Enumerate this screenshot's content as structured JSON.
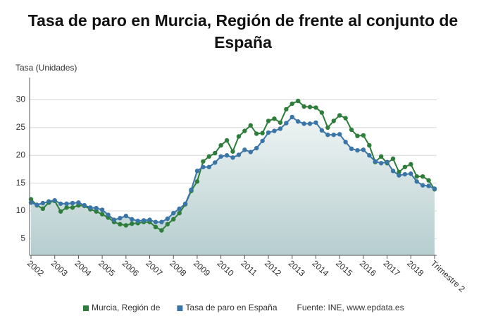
{
  "chart_data": {
    "type": "line",
    "title": "Tasa de paro en Murcia, Región de frente al conjunto de España",
    "y_label": "Tasa (Unidades)",
    "source": "Fuente: INE, www.epdata.es",
    "categories": [
      "2002",
      null,
      null,
      null,
      "2003",
      null,
      null,
      null,
      "2004",
      null,
      null,
      null,
      "2005",
      null,
      null,
      null,
      "2006",
      null,
      null,
      null,
      "2007",
      null,
      null,
      null,
      "2008",
      null,
      null,
      null,
      "2009",
      null,
      null,
      null,
      "2010",
      null,
      null,
      null,
      "2011",
      null,
      null,
      null,
      "2012",
      null,
      null,
      null,
      "2013",
      null,
      null,
      null,
      "2014",
      null,
      null,
      null,
      "2015",
      null,
      null,
      null,
      "2016",
      null,
      null,
      null,
      "2017",
      null,
      null,
      null,
      "2018",
      null,
      null,
      null,
      "Trimestre 2"
    ],
    "series": [
      {
        "name": "Murcia, Región de",
        "color": "#2e7d3a",
        "values": [
          12.1,
          11.0,
          10.4,
          11.5,
          11.8,
          9.9,
          10.6,
          10.6,
          11.0,
          10.9,
          10.3,
          9.9,
          9.4,
          8.8,
          8.0,
          7.6,
          7.4,
          7.7,
          7.8,
          8.0,
          8.0,
          7.1,
          6.5,
          7.6,
          8.5,
          9.6,
          11.2,
          13.6,
          15.3,
          18.9,
          19.8,
          20.4,
          21.8,
          22.7,
          20.7,
          23.4,
          24.4,
          25.4,
          23.9,
          24.0,
          26.2,
          26.6,
          25.9,
          28.3,
          29.3,
          29.8,
          28.8,
          28.7,
          28.6,
          27.7,
          25.0,
          26.2,
          27.2,
          26.7,
          24.6,
          23.5,
          23.6,
          21.8,
          18.8,
          19.8,
          18.6,
          19.4,
          17.0,
          17.9,
          18.4,
          16.2,
          16.2,
          15.5,
          13.9
        ]
      },
      {
        "name": "Tasa de paro en España",
        "color": "#3a75a8",
        "values": [
          11.5,
          11.1,
          11.4,
          11.7,
          11.9,
          11.3,
          11.3,
          11.4,
          11.5,
          11.0,
          10.6,
          10.5,
          10.2,
          9.3,
          8.4,
          8.7,
          9.1,
          8.5,
          8.2,
          8.3,
          8.4,
          8.0,
          8.0,
          8.6,
          9.6,
          10.4,
          11.3,
          13.8,
          17.2,
          17.9,
          17.9,
          18.7,
          19.8,
          20.0,
          19.6,
          20.1,
          21.0,
          20.6,
          21.3,
          22.6,
          24.1,
          24.4,
          24.8,
          25.8,
          26.9,
          26.1,
          25.7,
          25.7,
          25.9,
          24.5,
          23.7,
          23.7,
          23.8,
          22.4,
          21.2,
          20.9,
          21.0,
          20.0,
          18.9,
          18.6,
          18.8,
          17.2,
          16.4,
          16.6,
          16.7,
          15.3,
          14.6,
          14.5,
          14.0
        ]
      }
    ],
    "ylim": [
      2,
      34
    ],
    "yticks": [
      5,
      10,
      15,
      20,
      25,
      30
    ],
    "grid": true
  }
}
